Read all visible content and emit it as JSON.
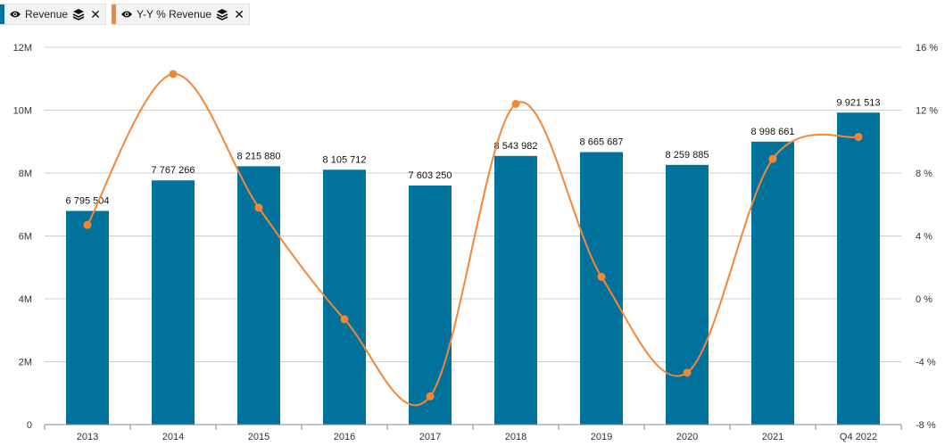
{
  "legend": {
    "items": [
      {
        "label": "Revenue",
        "color": "#00729c",
        "eye_icon": "eye-icon",
        "stack_icon": "layers-icon",
        "close_icon": "close-icon"
      },
      {
        "label": "Y-Y % Revenue",
        "color": "#f58634",
        "eye_icon": "eye-icon",
        "stack_icon": "layers-icon",
        "close_icon": "close-icon"
      }
    ]
  },
  "chart_data": {
    "type": "bar",
    "categories": [
      "2013",
      "2014",
      "2015",
      "2016",
      "2017",
      "2018",
      "2019",
      "2020",
      "2021",
      "Q4 2022"
    ],
    "series": [
      {
        "name": "Revenue",
        "type": "bar",
        "axis": "left",
        "color": "#00729c",
        "values": [
          6795504,
          7767266,
          8215880,
          8105712,
          7603250,
          8543982,
          8665687,
          8259885,
          8998661,
          9921513
        ],
        "labels": [
          "6 795 504",
          "7 767 266",
          "8 215 880",
          "8 105 712",
          "7 603 250",
          "8 543 982",
          "8 665 687",
          "8 259 885",
          "8 998 661",
          "9 921 513"
        ]
      },
      {
        "name": "Y-Y % Revenue",
        "type": "line",
        "axis": "right",
        "color": "#f58634",
        "smooth": true,
        "values": [
          4.7,
          14.3,
          5.8,
          -1.3,
          -6.2,
          12.4,
          1.4,
          -4.7,
          8.9,
          10.3
        ]
      }
    ],
    "y_left": {
      "min": 0,
      "max": 12000000,
      "ticks": [
        0,
        2000000,
        4000000,
        6000000,
        8000000,
        10000000,
        12000000
      ],
      "tick_labels": [
        "0",
        "2M",
        "4M",
        "6M",
        "8M",
        "10M",
        "12M"
      ]
    },
    "y_right": {
      "min": -8,
      "max": 16,
      "ticks": [
        -8,
        -4,
        0,
        4,
        8,
        12,
        16
      ],
      "tick_labels": [
        "-8 %",
        "-4 %",
        "0 %",
        "4 %",
        "8 %",
        "12 %",
        "16 %"
      ]
    },
    "grid": true
  }
}
